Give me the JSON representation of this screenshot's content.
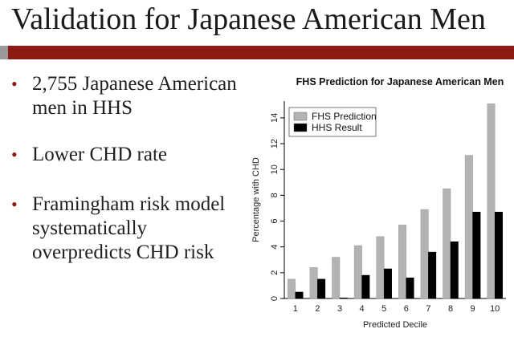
{
  "slide": {
    "title": "Validation for Japanese American Men",
    "bullet_glyph": "•",
    "bullets": [
      "2,755 Japanese American men in HHS",
      "Lower CHD rate",
      "Framingham risk model systematically overpredicts CHD risk"
    ]
  },
  "chart_data": {
    "type": "bar",
    "title": "FHS Prediction for Japanese American Men",
    "xlabel": "Predicted Decile",
    "ylabel": "Percentage with CHD",
    "categories": [
      "1",
      "2",
      "3",
      "4",
      "5",
      "6",
      "7",
      "8",
      "9",
      "10"
    ],
    "series": [
      {
        "name": "FHS Prediction",
        "color": "#b3b3b3",
        "values": [
          1.5,
          2.4,
          3.2,
          4.1,
          4.8,
          5.7,
          6.9,
          8.5,
          11.1,
          15.1
        ]
      },
      {
        "name": "HHS Result",
        "color": "#000000",
        "values": [
          0.5,
          1.5,
          0.05,
          1.8,
          2.3,
          1.6,
          3.6,
          4.4,
          6.7,
          6.7
        ]
      }
    ],
    "yticks": [
      0,
      2,
      4,
      6,
      8,
      10,
      12,
      14
    ],
    "ylim": [
      0,
      15.3
    ],
    "legend": "top-left",
    "grid": false
  },
  "colors": {
    "accent": "#8e1a14",
    "bar_grey": "#b3b3b3",
    "bar_black": "#000000"
  }
}
